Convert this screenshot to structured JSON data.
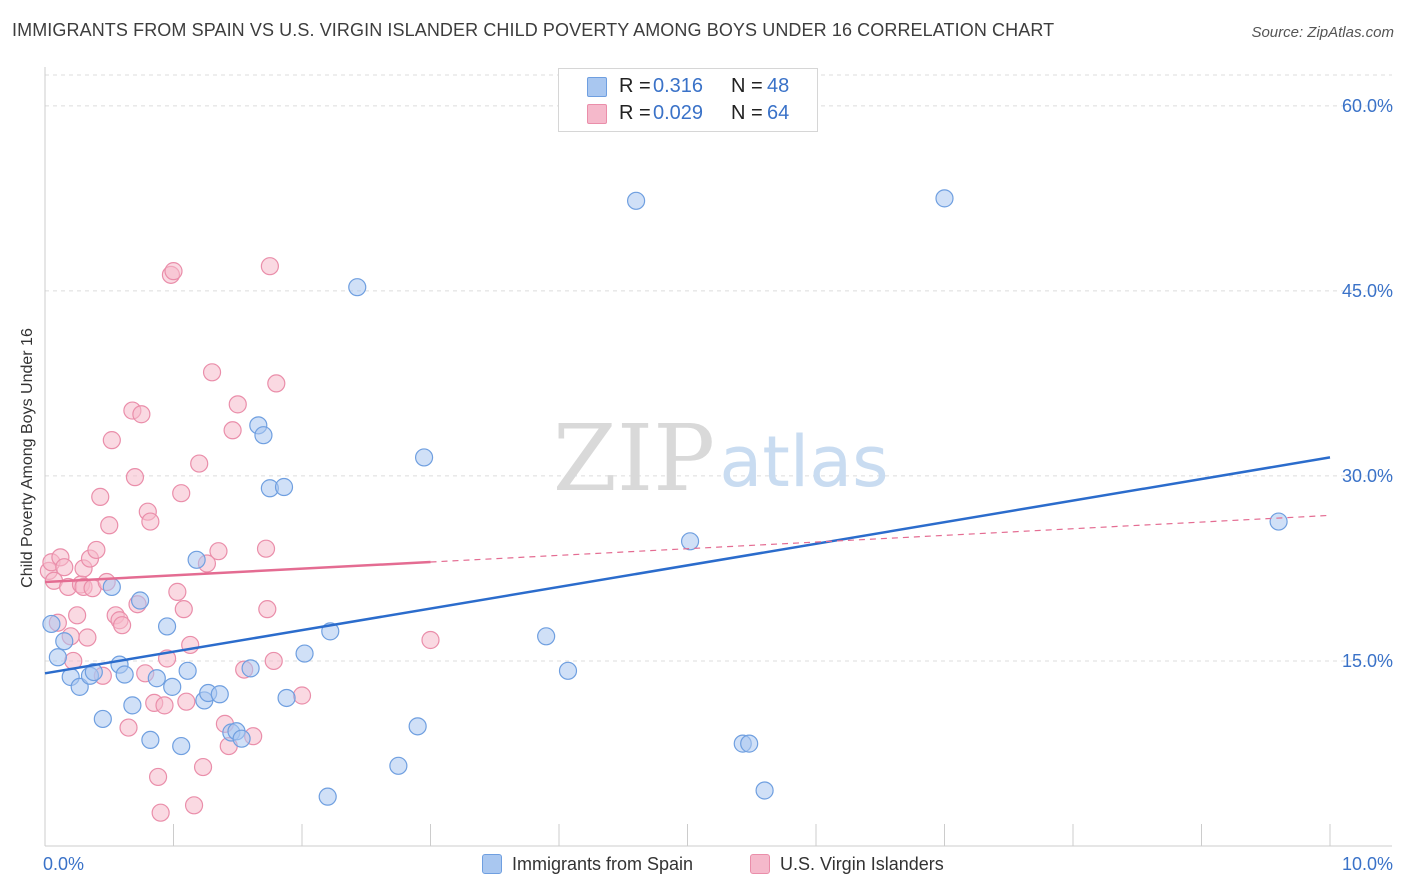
{
  "title": "IMMIGRANTS FROM SPAIN VS U.S. VIRGIN ISLANDER CHILD POVERTY AMONG BOYS UNDER 16 CORRELATION CHART",
  "source": "Source: ZipAtlas.com",
  "watermark": {
    "zip": "ZIP",
    "atlas": "atlas"
  },
  "stats": {
    "blue": {
      "r_label": "R =",
      "r_value": "0.316",
      "n_label": "N =",
      "n_value": "48"
    },
    "pink": {
      "r_label": "R =",
      "r_value": "0.029",
      "n_label": "N =",
      "n_value": "64"
    }
  },
  "legend": {
    "blue": "Immigrants from Spain",
    "pink": "U.S. Virgin Islanders"
  },
  "colors": {
    "blue_fill": "#a9c7f0",
    "blue_stroke": "#6f9fe0",
    "blue_line": "#2b6ccc",
    "pink_fill": "#f5b9cb",
    "pink_stroke": "#ea8eaa",
    "pink_line": "#e46c92",
    "axis_label": "#3a72c8",
    "grid": "#dcdcdc"
  },
  "chart_data": {
    "type": "scatter",
    "title": "IMMIGRANTS FROM SPAIN VS U.S. VIRGIN ISLANDER CHILD POVERTY AMONG BOYS UNDER 16 CORRELATION CHART",
    "xlabel": "",
    "ylabel": "Child Poverty Among Boys Under 16",
    "xlim": [
      0,
      10
    ],
    "ylim": [
      0,
      62.5
    ],
    "x_tick_labels": [
      "0.0%",
      "10.0%"
    ],
    "y_ticks": [
      15,
      30,
      45,
      60
    ],
    "y_tick_labels": [
      "15.0%",
      "30.0%",
      "45.0%",
      "60.0%"
    ],
    "series": [
      {
        "name": "Immigrants from Spain",
        "color": "blue",
        "trend": {
          "x": [
            0,
            10
          ],
          "y": [
            14.0,
            31.5
          ],
          "dashed_from": null
        },
        "points": [
          [
            0.05,
            18.0
          ],
          [
            0.1,
            15.3
          ],
          [
            0.15,
            16.6
          ],
          [
            0.2,
            13.7
          ],
          [
            0.27,
            12.9
          ],
          [
            0.35,
            13.8
          ],
          [
            0.38,
            14.1
          ],
          [
            0.45,
            10.3
          ],
          [
            0.52,
            21.0
          ],
          [
            0.58,
            14.7
          ],
          [
            0.62,
            13.9
          ],
          [
            0.68,
            11.4
          ],
          [
            0.74,
            19.9
          ],
          [
            0.82,
            8.6
          ],
          [
            0.87,
            13.6
          ],
          [
            0.95,
            17.8
          ],
          [
            0.99,
            12.9
          ],
          [
            1.06,
            8.1
          ],
          [
            1.11,
            14.2
          ],
          [
            1.18,
            23.2
          ],
          [
            1.24,
            11.8
          ],
          [
            1.27,
            12.4
          ],
          [
            1.36,
            12.3
          ],
          [
            1.45,
            9.2
          ],
          [
            1.49,
            9.3
          ],
          [
            1.53,
            8.7
          ],
          [
            1.6,
            14.4
          ],
          [
            1.66,
            34.1
          ],
          [
            1.7,
            33.3
          ],
          [
            1.75,
            29.0
          ],
          [
            1.86,
            29.1
          ],
          [
            1.88,
            12.0
          ],
          [
            2.02,
            15.6
          ],
          [
            2.2,
            4.0
          ],
          [
            2.22,
            17.4
          ],
          [
            2.43,
            45.3
          ],
          [
            2.75,
            6.5
          ],
          [
            2.9,
            9.7
          ],
          [
            2.95,
            31.5
          ],
          [
            3.9,
            17.0
          ],
          [
            4.07,
            14.2
          ],
          [
            4.6,
            52.3
          ],
          [
            5.02,
            24.7
          ],
          [
            5.43,
            8.3
          ],
          [
            5.48,
            8.3
          ],
          [
            5.6,
            4.5
          ],
          [
            7.0,
            52.5
          ],
          [
            9.6,
            26.3
          ]
        ]
      },
      {
        "name": "U.S. Virgin Islanders",
        "color": "pink",
        "trend": {
          "x": [
            0,
            10
          ],
          "y": [
            21.4,
            26.8
          ],
          "dashed_from": 3.0
        },
        "points": [
          [
            0.03,
            22.3
          ],
          [
            0.05,
            23.0
          ],
          [
            0.07,
            21.5
          ],
          [
            0.1,
            18.1
          ],
          [
            0.12,
            23.4
          ],
          [
            0.15,
            22.6
          ],
          [
            0.18,
            21.0
          ],
          [
            0.2,
            17.0
          ],
          [
            0.22,
            15.0
          ],
          [
            0.25,
            18.7
          ],
          [
            0.28,
            21.2
          ],
          [
            0.3,
            22.5
          ],
          [
            0.3,
            21.0
          ],
          [
            0.33,
            16.9
          ],
          [
            0.35,
            23.3
          ],
          [
            0.37,
            20.9
          ],
          [
            0.4,
            24.0
          ],
          [
            0.43,
            28.3
          ],
          [
            0.45,
            13.8
          ],
          [
            0.48,
            21.4
          ],
          [
            0.5,
            26.0
          ],
          [
            0.52,
            32.9
          ],
          [
            0.55,
            18.7
          ],
          [
            0.58,
            18.3
          ],
          [
            0.6,
            17.9
          ],
          [
            0.65,
            9.6
          ],
          [
            0.68,
            35.3
          ],
          [
            0.7,
            29.9
          ],
          [
            0.72,
            19.6
          ],
          [
            0.75,
            35.0
          ],
          [
            0.78,
            14.0
          ],
          [
            0.8,
            27.1
          ],
          [
            0.82,
            26.3
          ],
          [
            0.85,
            11.6
          ],
          [
            0.88,
            5.6
          ],
          [
            0.9,
            2.7
          ],
          [
            0.93,
            11.4
          ],
          [
            0.95,
            15.2
          ],
          [
            0.98,
            46.3
          ],
          [
            1.0,
            46.6
          ],
          [
            1.03,
            20.6
          ],
          [
            1.06,
            28.6
          ],
          [
            1.08,
            19.2
          ],
          [
            1.1,
            11.7
          ],
          [
            1.13,
            16.3
          ],
          [
            1.16,
            3.3
          ],
          [
            1.2,
            31.0
          ],
          [
            1.23,
            6.4
          ],
          [
            1.26,
            22.9
          ],
          [
            1.3,
            38.4
          ],
          [
            1.35,
            23.9
          ],
          [
            1.4,
            9.9
          ],
          [
            1.43,
            8.1
          ],
          [
            1.46,
            33.7
          ],
          [
            1.5,
            35.8
          ],
          [
            1.55,
            14.3
          ],
          [
            1.62,
            8.9
          ],
          [
            1.72,
            24.1
          ],
          [
            1.73,
            19.2
          ],
          [
            1.75,
            47.0
          ],
          [
            1.78,
            15.0
          ],
          [
            1.8,
            37.5
          ],
          [
            2.0,
            12.2
          ],
          [
            3.0,
            16.7
          ]
        ]
      }
    ]
  }
}
